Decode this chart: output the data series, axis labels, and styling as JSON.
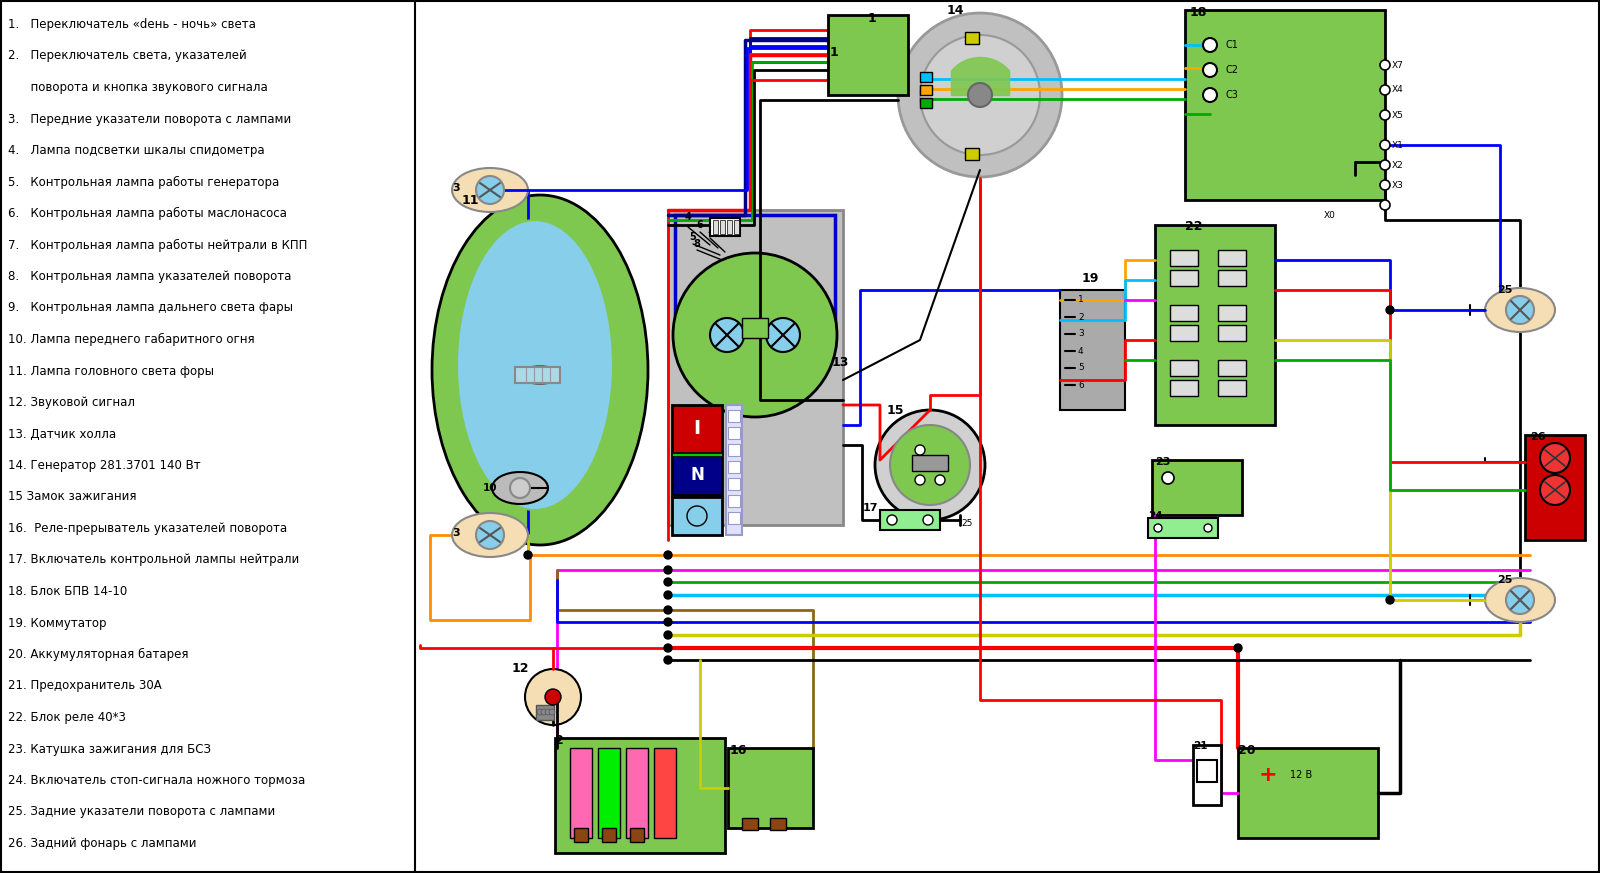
{
  "bg_color": "#ffffff",
  "legend_items": [
    "1.   Переключатель «dень - ночь» света",
    "2.   Переключатель света, указателей",
    "      поворота и кнопка звукового сигнала",
    "3.   Передние указатели поворота с лампами",
    "4.   Лампа подсветки шкалы спидометра",
    "5.   Контрольная лампа работы генератора",
    "6.   Контрольная лампа работы маслонасоса",
    "7.   Контрольная лампа работы нейтрали в КПП",
    "8.   Контрольная лампа указателей поворота",
    "9.   Контрольная лампа дальнего света фары",
    "10. Лампа переднего габаритного огня",
    "11. Лампа головного света форы",
    "12. Звуковой сигнал",
    "13. Датчик холла",
    "14. Генератор 281.3701 140 Вт",
    "15 Замок зажигания",
    "16.  Реле-прерыватель указателей поворота",
    "17. Включатель контрольной лампы нейтрали",
    "18. Блок БПВ 14-10",
    "19. Коммутатор",
    "20. Аккумуляторная батарея",
    "21. Предохранитель 30А",
    "22. Блок реле 40*3",
    "23. Катушка зажигания для БСЗ",
    "24. Включатель стоп-сигнала ножного тормоза",
    "25. Задние указатели поворота с лампами",
    "26. Задний фонарь с лампами"
  ]
}
